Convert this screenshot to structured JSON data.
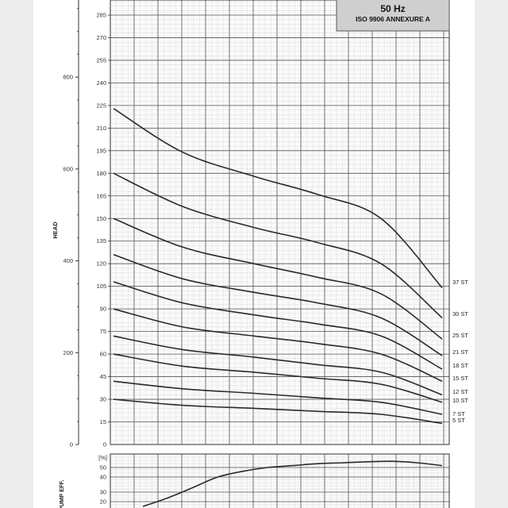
{
  "title_box": {
    "line1": "",
    "line2": "50 Hz",
    "line3": "ISO 9906 ANNEXURE A"
  },
  "chart_data": [
    {
      "type": "line",
      "title": "",
      "ylabel": "HEAD",
      "xlabel": "",
      "ylim_m": [
        0,
        295
      ],
      "ylim_ft": [
        0,
        968
      ],
      "y_ticks_m": [
        15,
        30,
        45,
        60,
        75,
        90,
        105,
        120,
        135,
        150,
        165,
        180,
        195,
        210,
        225,
        240,
        255,
        270,
        285
      ],
      "y_ticks_ft": [
        0,
        200,
        400,
        600,
        800
      ],
      "x_ticks_shown": false,
      "grid": true,
      "series": [
        {
          "name": "37 ST",
          "y": [
            223,
            194,
            178,
            166,
            150,
            104
          ]
        },
        {
          "name": "30 ST",
          "y": [
            180,
            158,
            144,
            134,
            120,
            84
          ]
        },
        {
          "name": "25 ST",
          "y": [
            150,
            131,
            120,
            111,
            100,
            70
          ]
        },
        {
          "name": "21 ST",
          "y": [
            126,
            110,
            101,
            94,
            84,
            59
          ]
        },
        {
          "name": "18 ST",
          "y": [
            108,
            94,
            86,
            80,
            72,
            50
          ]
        },
        {
          "name": "15 ST",
          "y": [
            90,
            78,
            72,
            67,
            60,
            42
          ]
        },
        {
          "name": "12 ST",
          "y": [
            72,
            63,
            58,
            53,
            48,
            33
          ]
        },
        {
          "name": "10 ST",
          "y": [
            60,
            52,
            48,
            44,
            40,
            28
          ]
        },
        {
          "name": "7 ST",
          "y": [
            42,
            37,
            34,
            31,
            28,
            20
          ]
        },
        {
          "name": "5 ST",
          "y": [
            30,
            26,
            24,
            22,
            20,
            14
          ]
        }
      ]
    },
    {
      "type": "line",
      "title": "",
      "ylabel": "PUMP EFF.",
      "unit_label": "[%]",
      "y_ticks": [
        20,
        30,
        40,
        50
      ],
      "ylim": [
        15,
        58
      ],
      "grid": true,
      "series": [
        {
          "y": [
            15,
            24,
            33,
            40,
            46,
            50,
            52,
            54,
            55,
            56,
            56.5,
            55,
            52
          ]
        }
      ]
    }
  ]
}
